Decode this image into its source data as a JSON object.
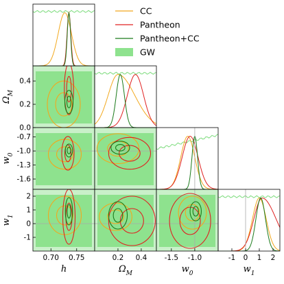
{
  "colors": {
    "cc": "#f2a81d",
    "pantheon": "#e02020",
    "pantheon_cc": "#1a7a1a",
    "gw": "#8ee28e",
    "gw_light": "#c9f0c9",
    "gw_line": "#7ddc7d",
    "ref_line": "#aaaaaa"
  },
  "chart_data": {
    "type": "scatter",
    "subtype": "corner-plot (triangle plot of 1D and 2D marginalized posteriors)",
    "parameters": [
      {
        "key": "h",
        "label": "h",
        "ticks": [
          0.7,
          0.75
        ],
        "tick_labels": [
          "0.70",
          "0.75"
        ],
        "range": [
          0.665,
          0.785
        ]
      },
      {
        "key": "om",
        "label": "Ω_M",
        "ticks": [
          0.0,
          0.2,
          0.4
        ],
        "tick_labels": [
          "0.0",
          "0.2",
          "0.4"
        ],
        "range": [
          0.0,
          0.53
        ]
      },
      {
        "key": "w0",
        "label": "w_0",
        "ticks": [
          -0.7,
          -1.0,
          -1.3,
          -1.6
        ],
        "tick_labels": [
          "-0.7",
          "-1.0",
          "-1.3",
          "-1.6"
        ],
        "range": [
          -1.82,
          -0.5
        ]
      },
      {
        "key": "w1",
        "label": "w_1",
        "ticks": [
          -1,
          0,
          1,
          2
        ],
        "tick_labels": [
          "-1",
          "0",
          "1",
          "2"
        ],
        "range": [
          -2.0,
          2.5
        ]
      }
    ],
    "x_axis_labels": [
      {
        "main": "h",
        "sub": ""
      },
      {
        "main": "Ω",
        "sub": "M"
      },
      {
        "main": "w",
        "sub": "0"
      },
      {
        "main": "w",
        "sub": "1"
      }
    ],
    "y_axis_labels": [
      {
        "main": "Ω",
        "sub": "M"
      },
      {
        "main": "w",
        "sub": "0"
      },
      {
        "main": "w",
        "sub": "1"
      }
    ],
    "x_tick_rows": [
      {
        "param": "h",
        "ticks": [
          0.7,
          0.75
        ],
        "labels": [
          "0.70",
          "0.75"
        ]
      },
      {
        "param": "om",
        "ticks": [
          0.2,
          0.4
        ],
        "labels": [
          "0.2",
          "0.4"
        ]
      },
      {
        "param": "w0",
        "ticks": [
          -1.5,
          -1.0
        ],
        "labels": [
          "-1.5",
          "-1.0"
        ]
      },
      {
        "param": "w1",
        "ticks": [
          -1,
          0,
          1,
          2
        ],
        "labels": [
          "-1",
          "0",
          "1",
          "2"
        ]
      }
    ],
    "fiducial": {
      "w0": -1.0,
      "w1": 0.0
    },
    "series": [
      {
        "name": "CC",
        "color_key": "cc",
        "style": "line"
      },
      {
        "name": "Pantheon",
        "color_key": "pantheon",
        "style": "line"
      },
      {
        "name": "Pantheon+CC",
        "color_key": "pantheon_cc",
        "style": "line"
      },
      {
        "name": "GW",
        "color_key": "gw",
        "style": "filled"
      }
    ],
    "marginals": {
      "h": {
        "CC": {
          "mean": 0.727,
          "sd": 0.013
        },
        "Pantheon+CC": {
          "mean": 0.735,
          "sd": 0.0032
        },
        "Pantheon": {
          "mean": 0.735,
          "sd": 0.0036
        },
        "GW": "nearly flat (prior-dominated)"
      },
      "om": {
        "CC": {
          "peak": 0.2,
          "sd": 0.085,
          "skew": "long tail to high values"
        },
        "Pantheon": {
          "peak": 0.35,
          "sd": 0.07
        },
        "Pantheon+CC": {
          "peak": 0.22,
          "sd": 0.035
        },
        "GW": "broad, flat above 0.1"
      },
      "w0": {
        "CC": {
          "peak": -1.15,
          "sd": 0.15
        },
        "Pantheon": {
          "peak": -1.1,
          "sd": 0.17
        },
        "Pantheon+CC": {
          "peak": -1.0,
          "sd": 0.06
        },
        "GW": "rising slowly toward higher w0"
      },
      "w1": {
        "CC": {
          "peak": 1.0,
          "sd": 0.5
        },
        "Pantheon": {
          "peak": 1.2,
          "sd": 0.6,
          "skew": "tail to negative values"
        },
        "Pantheon+CC": {
          "peak": 1.1,
          "sd": 0.35
        },
        "GW": "nearly flat"
      }
    },
    "contours_2d": [
      {
        "x": "h",
        "y": "om",
        "CC": {
          "center": [
            0.725,
            0.2
          ],
          "sx": 0.016,
          "sy": 0.1
        },
        "Pantheon": {
          "center": [
            0.735,
            0.33
          ],
          "sx": 0.0045,
          "sy": 0.11
        },
        "Pantheon+CC": {
          "center": [
            0.735,
            0.22
          ],
          "sx": 0.004,
          "sy": 0.05
        }
      },
      {
        "x": "h",
        "y": "w0",
        "CC": {
          "center": [
            0.727,
            -1.07
          ],
          "sx": 0.016,
          "sy": 0.16
        },
        "Pantheon": {
          "center": [
            0.733,
            -1.05
          ],
          "sx": 0.006,
          "sy": 0.18
        },
        "Pantheon+CC": {
          "center": [
            0.735,
            -0.99
          ],
          "sx": 0.0035,
          "sy": 0.07
        }
      },
      {
        "x": "h",
        "y": "w1",
        "CC": {
          "center": [
            0.727,
            0.6
          ],
          "sx": 0.016,
          "sy": 0.7
        },
        "Pantheon": {
          "center": [
            0.735,
            0.5
          ],
          "sx": 0.006,
          "sy": 1.0
        },
        "Pantheon+CC": {
          "center": [
            0.735,
            0.9
          ],
          "sx": 0.0035,
          "sy": 0.5
        }
      },
      {
        "x": "om",
        "y": "w0",
        "CC": {
          "center": [
            0.2,
            -0.95
          ],
          "sx": 0.09,
          "sy": 0.16
        },
        "Pantheon": {
          "center": [
            0.3,
            -1.05
          ],
          "sx": 0.09,
          "sy": 0.17
        },
        "Pantheon+CC": {
          "center": [
            0.22,
            -0.93
          ],
          "sx": 0.04,
          "sy": 0.07
        }
      },
      {
        "x": "om",
        "y": "w1",
        "CC": {
          "center": [
            0.18,
            0.5
          ],
          "sx": 0.07,
          "sy": 0.5
        },
        "Pantheon": {
          "center": [
            0.32,
            0.2
          ],
          "sx": 0.1,
          "sy": 0.9
        },
        "Pantheon+CC": {
          "center": [
            0.2,
            0.6
          ],
          "sx": 0.04,
          "sy": 0.5
        }
      },
      {
        "x": "w0",
        "y": "w1",
        "CC": {
          "center": [
            -1.05,
            0.8
          ],
          "sx": 0.15,
          "sy": 0.6
        },
        "Pantheon": {
          "center": [
            -1.1,
            0.2
          ],
          "sx": 0.22,
          "sy": 1.0
        },
        "Pantheon+CC": {
          "center": [
            -0.98,
            0.9
          ],
          "sx": 0.06,
          "sy": 0.35
        }
      }
    ]
  }
}
